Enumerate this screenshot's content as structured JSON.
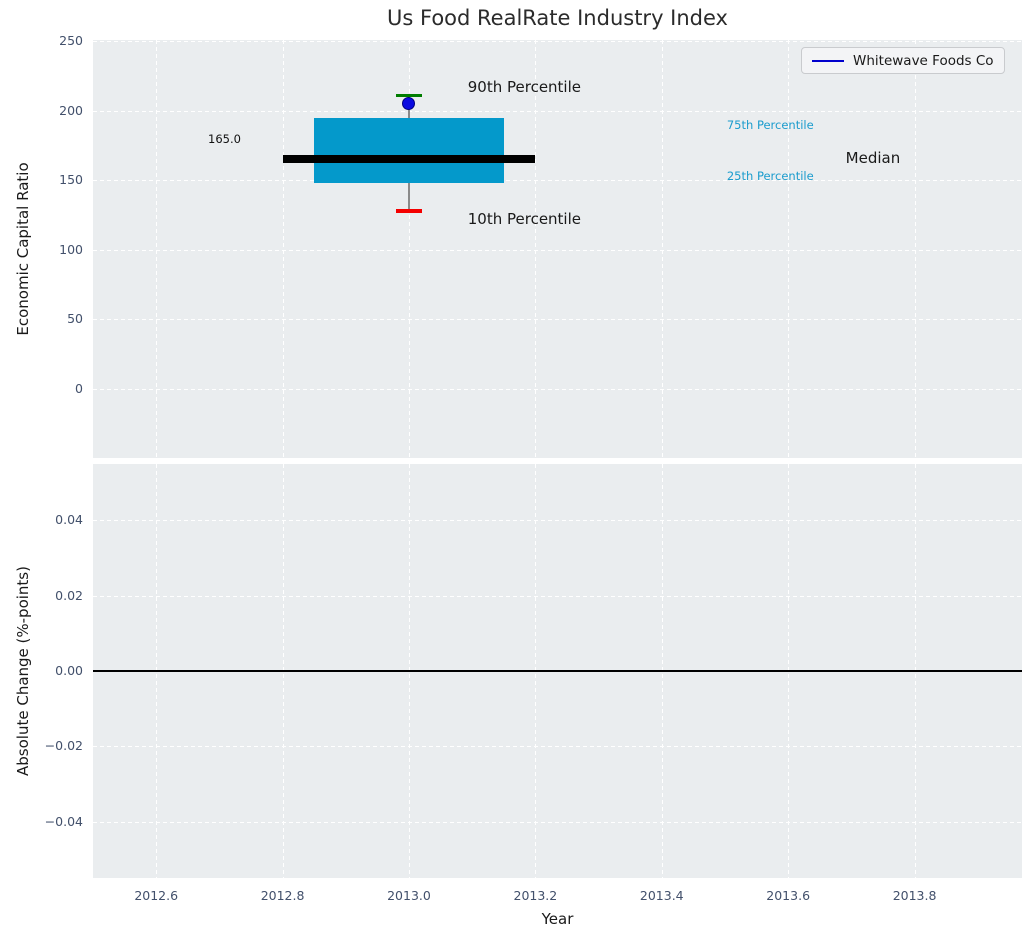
{
  "title": "Us Food RealRate Industry Index",
  "legend": {
    "label": "Whitewave Foods Co",
    "line_color": "#0000cd"
  },
  "colors": {
    "axes_bg": "#eaedef",
    "grid": "#ffffff",
    "tick_label": "#42506b",
    "axis_label": "#1a1a1a",
    "box_fill": "#0499cb",
    "median_line": "#000000",
    "whisker": "#8a8a8a",
    "cap_90th": "#007d00",
    "cap_10th": "#f40000",
    "point_fill": "#0a0ae0",
    "point_edge": "#000080",
    "zero_line": "#000000",
    "annotation_accent": "#1b9ccd"
  },
  "chart_data": [
    {
      "type": "boxplot",
      "title": "Us Food RealRate Industry Index",
      "ylabel": "Economic Capital Ratio",
      "grid": true,
      "legend_position": "upper right",
      "xlim": [
        2012.5,
        2013.97
      ],
      "ylim": [
        -50,
        251
      ],
      "yticks": [
        {
          "v": 250,
          "label": "250"
        },
        {
          "v": 200,
          "label": "200"
        },
        {
          "v": 150,
          "label": "150"
        },
        {
          "v": 100,
          "label": "100"
        },
        {
          "v": 50,
          "label": "50"
        },
        {
          "v": 0,
          "label": "0"
        }
      ],
      "xticks": [
        {
          "v": 2012.6,
          "label": "2012.6"
        },
        {
          "v": 2012.8,
          "label": "2012.8"
        },
        {
          "v": 2013.0,
          "label": "2013.0"
        },
        {
          "v": 2013.2,
          "label": "2013.2"
        },
        {
          "v": 2013.4,
          "label": "2013.4"
        },
        {
          "v": 2013.6,
          "label": "2013.6"
        },
        {
          "v": 2013.8,
          "label": "2013.8"
        }
      ],
      "box": {
        "x": 2013.0,
        "p10": 128,
        "p25": 148,
        "median": 165,
        "p75": 195,
        "p90": 211,
        "median_label": "165.0",
        "box_halfwidth": 0.15,
        "median_halfwidth": 0.2,
        "cap_halfwidth": 0.021
      },
      "points": [
        {
          "name": "Whitewave Foods Co",
          "x": 2013.0,
          "y": 205
        }
      ],
      "annotations": [
        {
          "name": "90th-percentile-label",
          "text": "90th Percentile",
          "x": 2013.093,
          "y": 217,
          "size": 15,
          "color": "#1a1a1a"
        },
        {
          "name": "10th-percentile-label",
          "text": "10th Percentile",
          "x": 2013.093,
          "y": 122,
          "size": 15,
          "color": "#1a1a1a"
        },
        {
          "name": "median-label",
          "text": "Median",
          "x": 2013.691,
          "y": 166,
          "size": 15,
          "color": "#1a1a1a"
        },
        {
          "name": "75th-percentile-label",
          "text": "75th Percentile",
          "x": 2013.503,
          "y": 190,
          "size": 11.5,
          "color": "#1b9ccd"
        },
        {
          "name": "25th-percentile-label",
          "text": "25th Percentile",
          "x": 2013.503,
          "y": 153,
          "size": 11.5,
          "color": "#1b9ccd"
        },
        {
          "name": "median-value-label",
          "text": "165.0",
          "x": 2012.682,
          "y": 180,
          "size": 11.5,
          "color": "#111111"
        }
      ]
    },
    {
      "type": "line",
      "ylabel": "Absolute Change (%-points)",
      "xlabel": "Year",
      "grid": true,
      "xlim": [
        2012.5,
        2013.97
      ],
      "ylim": [
        -0.055,
        0.055
      ],
      "yticks": [
        {
          "v": 0.04,
          "label": "0.04"
        },
        {
          "v": 0.02,
          "label": "0.02"
        },
        {
          "v": 0.0,
          "label": "0.00"
        },
        {
          "v": -0.02,
          "label": "−0.02"
        },
        {
          "v": -0.04,
          "label": "−0.04"
        }
      ],
      "xticks": [
        {
          "v": 2012.6,
          "label": "2012.6"
        },
        {
          "v": 2012.8,
          "label": "2012.8"
        },
        {
          "v": 2013.0,
          "label": "2013.0"
        },
        {
          "v": 2013.2,
          "label": "2013.2"
        },
        {
          "v": 2013.4,
          "label": "2013.4"
        },
        {
          "v": 2013.6,
          "label": "2013.6"
        },
        {
          "v": 2013.8,
          "label": "2013.8"
        }
      ],
      "zero_line": 0,
      "series": [
        {
          "name": "Whitewave Foods Co",
          "x": [],
          "y": []
        }
      ]
    }
  ]
}
